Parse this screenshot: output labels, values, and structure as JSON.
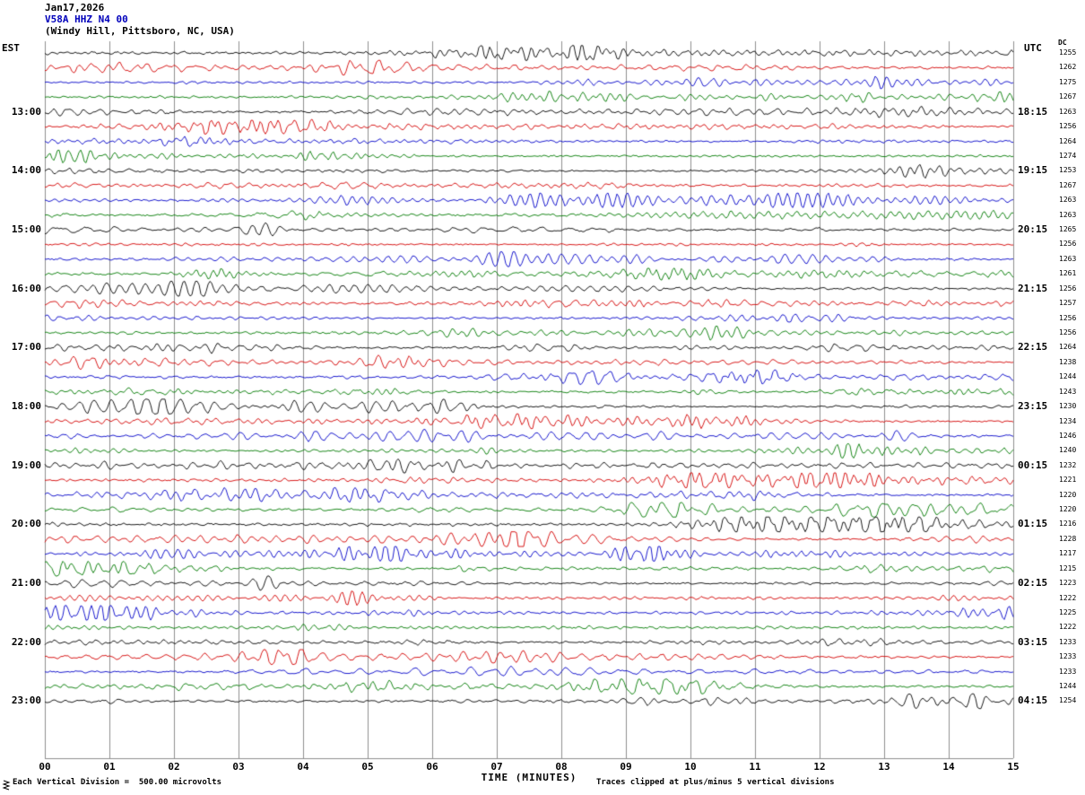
{
  "header": {
    "date": "Jan17,2026",
    "station": "V58A HHZ N4 00",
    "location": "(Windy Hill, Pittsboro, NC, USA)",
    "left_timezone": "EST",
    "right_timezone": "UTC",
    "dc_column": "DC"
  },
  "footer": {
    "scale_note": "Each Vertical Division =  500.00 microvolts",
    "clip_note": "Traces clipped at plus/minus 5 vertical divisions"
  },
  "colors": {
    "black": "#000000",
    "red": "#d40000",
    "blue": "#0000c8",
    "green": "#007a00",
    "station_title": "#0000bb",
    "grid": "#8f8f8f"
  },
  "chart_data": {
    "type": "line",
    "subtype": "helicorder-seismogram",
    "description": "Continuous seismic waveform traces, one 15-minute segment per row, trace colors cycling black/red/blue/green, amplitudes clipped at plus/minus 5 vertical divisions",
    "x_axis": {
      "title": "TIME (MINUTES)",
      "min": 0,
      "max": 15,
      "unit": "minutes",
      "ticks": [
        "00",
        "01",
        "02",
        "03",
        "04",
        "05",
        "06",
        "07",
        "08",
        "09",
        "10",
        "11",
        "12",
        "13",
        "14",
        "15"
      ]
    },
    "row_interval_minutes": 15,
    "trace_color_cycle": [
      "black",
      "red",
      "blue",
      "green"
    ],
    "vertical_division": "500.00 microvolts",
    "clip": "plus/minus 5 vertical divisions",
    "rows": [
      {
        "left_label": "",
        "right_label": "",
        "dc": "1255",
        "color": "black"
      },
      {
        "left_label": "",
        "right_label": "",
        "dc": "1262",
        "color": "red"
      },
      {
        "left_label": "",
        "right_label": "",
        "dc": "1275",
        "color": "blue"
      },
      {
        "left_label": "",
        "right_label": "",
        "dc": "1267",
        "color": "green"
      },
      {
        "left_label": "13:00",
        "right_label": "18:15",
        "dc": "1263",
        "color": "black"
      },
      {
        "left_label": "",
        "right_label": "",
        "dc": "1256",
        "color": "red"
      },
      {
        "left_label": "",
        "right_label": "",
        "dc": "1264",
        "color": "blue"
      },
      {
        "left_label": "",
        "right_label": "",
        "dc": "1274",
        "color": "green"
      },
      {
        "left_label": "14:00",
        "right_label": "19:15",
        "dc": "1253",
        "color": "black"
      },
      {
        "left_label": "",
        "right_label": "",
        "dc": "1267",
        "color": "red"
      },
      {
        "left_label": "",
        "right_label": "",
        "dc": "1263",
        "color": "blue"
      },
      {
        "left_label": "",
        "right_label": "",
        "dc": "1263",
        "color": "green"
      },
      {
        "left_label": "15:00",
        "right_label": "20:15",
        "dc": "1265",
        "color": "black"
      },
      {
        "left_label": "",
        "right_label": "",
        "dc": "1256",
        "color": "red"
      },
      {
        "left_label": "",
        "right_label": "",
        "dc": "1263",
        "color": "blue"
      },
      {
        "left_label": "",
        "right_label": "",
        "dc": "1261",
        "color": "green"
      },
      {
        "left_label": "16:00",
        "right_label": "21:15",
        "dc": "1256",
        "color": "black"
      },
      {
        "left_label": "",
        "right_label": "",
        "dc": "1257",
        "color": "red"
      },
      {
        "left_label": "",
        "right_label": "",
        "dc": "1256",
        "color": "blue"
      },
      {
        "left_label": "",
        "right_label": "",
        "dc": "1256",
        "color": "green"
      },
      {
        "left_label": "17:00",
        "right_label": "22:15",
        "dc": "1264",
        "color": "black"
      },
      {
        "left_label": "",
        "right_label": "",
        "dc": "1238",
        "color": "red"
      },
      {
        "left_label": "",
        "right_label": "",
        "dc": "1244",
        "color": "blue"
      },
      {
        "left_label": "",
        "right_label": "",
        "dc": "1243",
        "color": "green"
      },
      {
        "left_label": "18:00",
        "right_label": "23:15",
        "dc": "1230",
        "color": "black"
      },
      {
        "left_label": "",
        "right_label": "",
        "dc": "1234",
        "color": "red"
      },
      {
        "left_label": "",
        "right_label": "",
        "dc": "1246",
        "color": "blue"
      },
      {
        "left_label": "",
        "right_label": "",
        "dc": "1240",
        "color": "green"
      },
      {
        "left_label": "19:00",
        "right_label": "00:15",
        "dc": "1232",
        "color": "black"
      },
      {
        "left_label": "",
        "right_label": "",
        "dc": "1221",
        "color": "red"
      },
      {
        "left_label": "",
        "right_label": "",
        "dc": "1220",
        "color": "blue"
      },
      {
        "left_label": "",
        "right_label": "",
        "dc": "1220",
        "color": "green"
      },
      {
        "left_label": "20:00",
        "right_label": "01:15",
        "dc": "1216",
        "color": "black"
      },
      {
        "left_label": "",
        "right_label": "",
        "dc": "1228",
        "color": "red"
      },
      {
        "left_label": "",
        "right_label": "",
        "dc": "1217",
        "color": "blue"
      },
      {
        "left_label": "",
        "right_label": "",
        "dc": "1215",
        "color": "green"
      },
      {
        "left_label": "21:00",
        "right_label": "02:15",
        "dc": "1223",
        "color": "black"
      },
      {
        "left_label": "",
        "right_label": "",
        "dc": "1222",
        "color": "red"
      },
      {
        "left_label": "",
        "right_label": "",
        "dc": "1225",
        "color": "blue"
      },
      {
        "left_label": "",
        "right_label": "",
        "dc": "1222",
        "color": "green"
      },
      {
        "left_label": "22:00",
        "right_label": "03:15",
        "dc": "1233",
        "color": "black"
      },
      {
        "left_label": "",
        "right_label": "",
        "dc": "1233",
        "color": "red"
      },
      {
        "left_label": "",
        "right_label": "",
        "dc": "1233",
        "color": "blue"
      },
      {
        "left_label": "",
        "right_label": "",
        "dc": "1244",
        "color": "green"
      },
      {
        "left_label": "23:00",
        "right_label": "04:15",
        "dc": "1254",
        "color": "black"
      }
    ]
  }
}
